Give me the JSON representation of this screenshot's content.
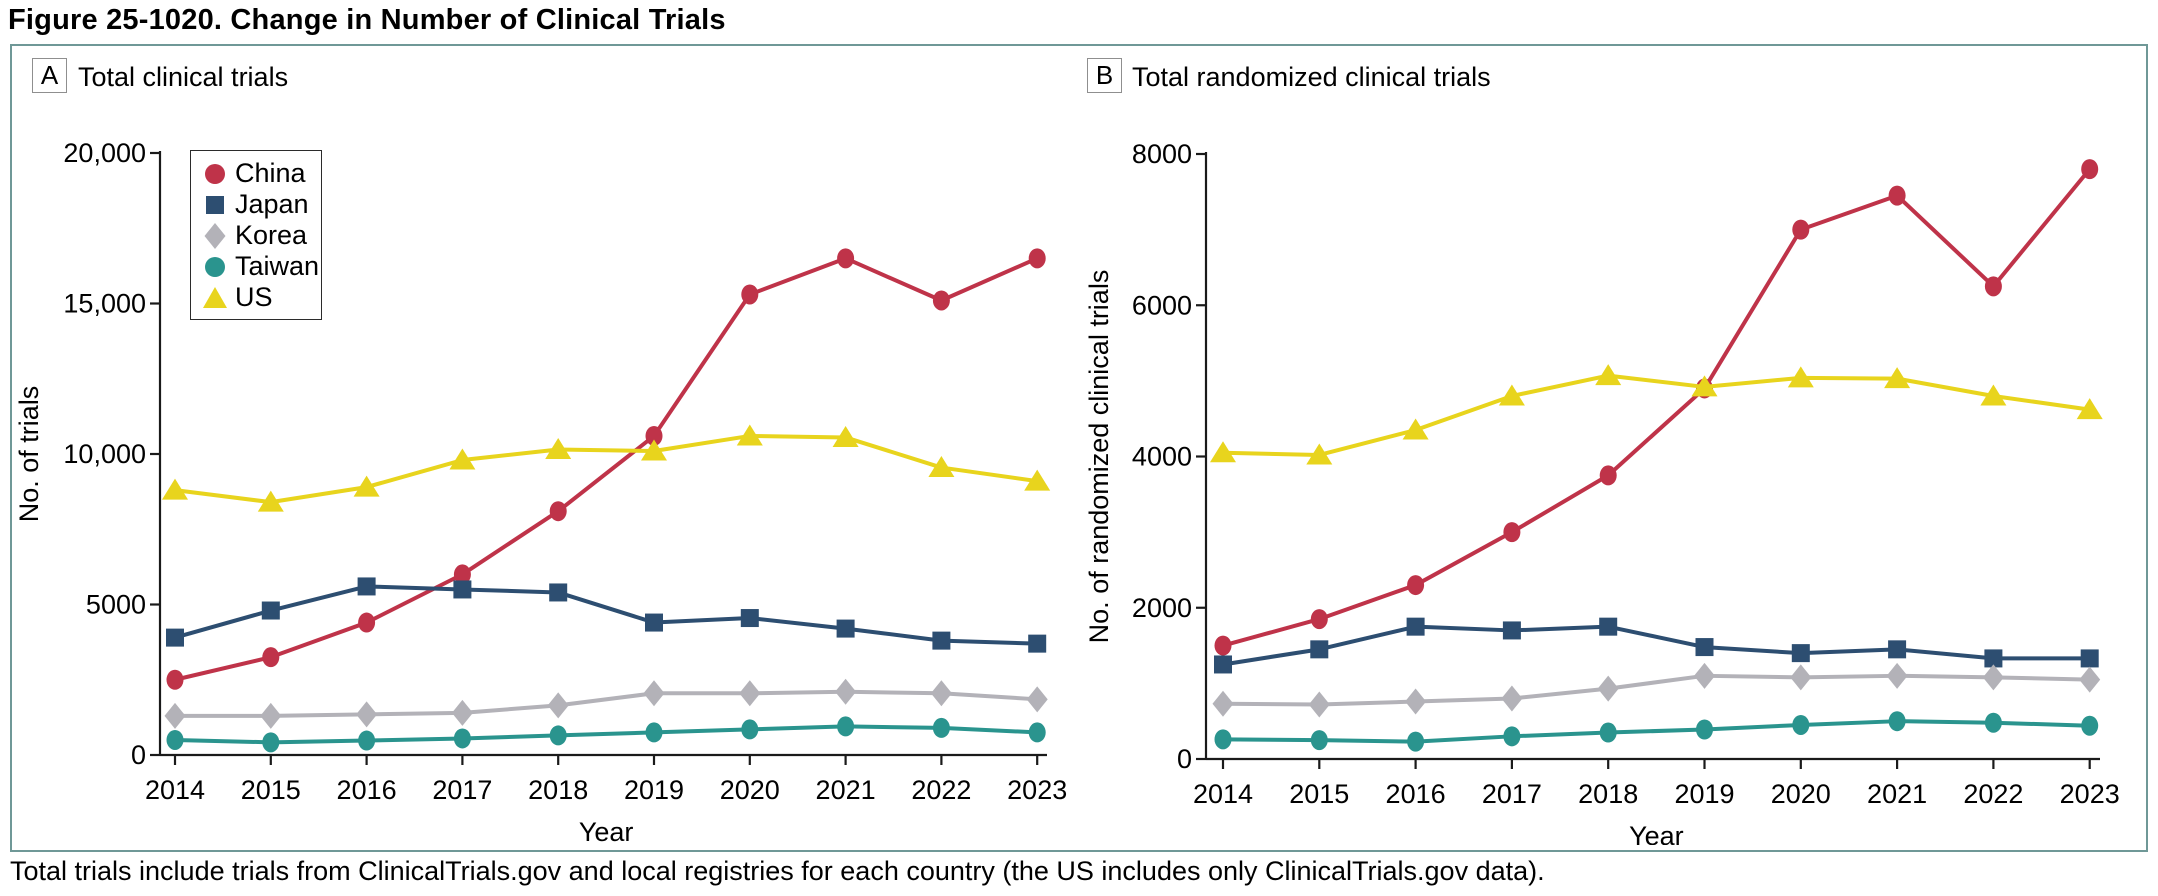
{
  "title": "Figure 25-1020. Change in Number of Clinical Trials",
  "caption": "Total trials include trials from ClinicalTrials.gov and local registries for each country (the US includes only ClinicalTrials.gov data).",
  "colors": {
    "china": "#bf3349",
    "japan": "#2d4e71",
    "korea": "#b3b2b8",
    "taiwan": "#2a948e",
    "us": "#e8d41d",
    "frame_border": "#6f9897",
    "axis": "#1a1a1a"
  },
  "legend": {
    "position": "top-left of panel A",
    "entries": [
      {
        "label": "China",
        "marker": "circle",
        "color": "#bf3349"
      },
      {
        "label": "Japan",
        "marker": "square",
        "color": "#2d4e71"
      },
      {
        "label": "Korea",
        "marker": "diamond",
        "color": "#b3b2b8"
      },
      {
        "label": "Taiwan",
        "marker": "circle",
        "color": "#2a948e"
      },
      {
        "label": "US",
        "marker": "triangle",
        "color": "#e8d41d"
      }
    ]
  },
  "chart_data": [
    {
      "id": "A",
      "panel_label": "A",
      "title": "Total clinical trials",
      "type": "line",
      "x": [
        2014,
        2015,
        2016,
        2017,
        2018,
        2019,
        2020,
        2021,
        2022,
        2023
      ],
      "xlabel": "Year",
      "ylabel": "No. of trials",
      "ylim": [
        0,
        20000
      ],
      "yticks": [
        0,
        5000,
        10000,
        15000,
        20000
      ],
      "ytick_labels": [
        "0",
        "5000",
        "10,000",
        "15,000",
        "20,000"
      ],
      "grid": false,
      "legend_visible": true,
      "series": [
        {
          "name": "China",
          "marker": "circle",
          "color": "#bf3349",
          "values": [
            2500,
            3250,
            4400,
            6000,
            8100,
            10600,
            15300,
            16500,
            15100,
            16500
          ]
        },
        {
          "name": "Japan",
          "marker": "square",
          "color": "#2d4e71",
          "values": [
            3900,
            4800,
            5600,
            5500,
            5400,
            4400,
            4550,
            4200,
            3800,
            3700
          ]
        },
        {
          "name": "Korea",
          "marker": "diamond",
          "color": "#b3b2b8",
          "values": [
            1300,
            1300,
            1350,
            1400,
            1650,
            2050,
            2050,
            2100,
            2050,
            1850
          ]
        },
        {
          "name": "Taiwan",
          "marker": "circle",
          "color": "#2a948e",
          "values": [
            500,
            420,
            480,
            550,
            650,
            750,
            850,
            950,
            900,
            750
          ]
        },
        {
          "name": "US",
          "marker": "triangle",
          "color": "#e8d41d",
          "values": [
            8800,
            8400,
            8900,
            9800,
            10150,
            10100,
            10600,
            10550,
            9550,
            9100
          ]
        }
      ]
    },
    {
      "id": "B",
      "panel_label": "B",
      "title": "Total randomized clinical trials",
      "type": "line",
      "x": [
        2014,
        2015,
        2016,
        2017,
        2018,
        2019,
        2020,
        2021,
        2022,
        2023
      ],
      "xlabel": "Year",
      "ylabel": "No. of randomized clinical trials",
      "ylim": [
        0,
        8000
      ],
      "yticks": [
        0,
        2000,
        4000,
        6000,
        8000
      ],
      "ytick_labels": [
        "0",
        "2000",
        "4000",
        "6000",
        "8000"
      ],
      "grid": false,
      "legend_visible": false,
      "series": [
        {
          "name": "China",
          "marker": "circle",
          "color": "#bf3349",
          "values": [
            1500,
            1850,
            2300,
            3000,
            3750,
            4900,
            7000,
            7450,
            6250,
            7800
          ]
        },
        {
          "name": "Japan",
          "marker": "square",
          "color": "#2d4e71",
          "values": [
            1250,
            1450,
            1750,
            1700,
            1750,
            1480,
            1400,
            1450,
            1330,
            1330
          ]
        },
        {
          "name": "Korea",
          "marker": "diamond",
          "color": "#b3b2b8",
          "values": [
            730,
            720,
            760,
            800,
            930,
            1100,
            1080,
            1100,
            1080,
            1050
          ]
        },
        {
          "name": "Taiwan",
          "marker": "circle",
          "color": "#2a948e",
          "values": [
            260,
            250,
            230,
            300,
            350,
            390,
            450,
            500,
            480,
            440
          ]
        },
        {
          "name": "US",
          "marker": "triangle",
          "color": "#e8d41d",
          "values": [
            4050,
            4020,
            4350,
            4800,
            5070,
            4920,
            5040,
            5030,
            4800,
            4620
          ]
        }
      ]
    }
  ]
}
